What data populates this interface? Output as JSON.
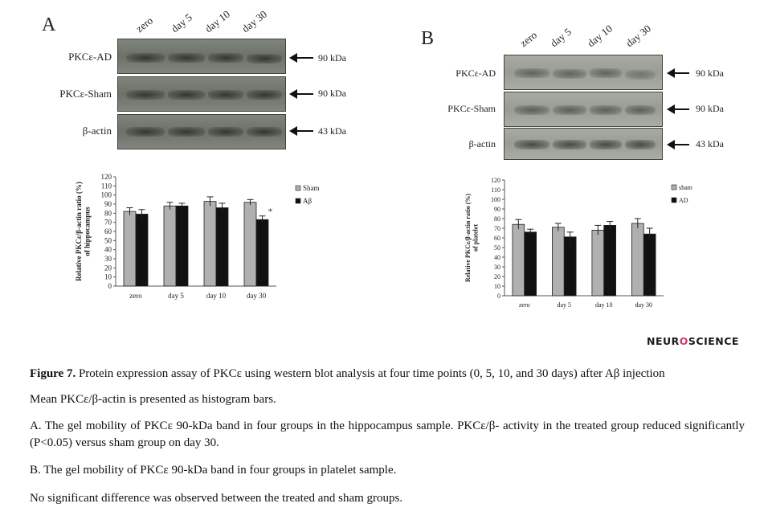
{
  "panel_a": {
    "letter": "A",
    "lanes": [
      "zero",
      "day 5",
      "day 10",
      "day 30"
    ],
    "rows": [
      {
        "label": "PKCε-AD",
        "kda": "90 kDa"
      },
      {
        "label": "PKCε-Sham",
        "kda": "90 kDa"
      },
      {
        "label": "β-actin",
        "kda": "43 kDa"
      }
    ]
  },
  "panel_b": {
    "letter": "B",
    "lanes": [
      "zero",
      "day 5",
      "day 10",
      "day 30"
    ],
    "rows": [
      {
        "label": "PKCε-AD",
        "kda": "90 kDa"
      },
      {
        "label": "PKCε-Sham",
        "kda": "90 kDa"
      },
      {
        "label": "β-actin",
        "kda": "43 kDa"
      }
    ]
  },
  "chart_data": [
    {
      "type": "bar",
      "categories": [
        "zero",
        "day 5",
        "day 10",
        "day 30"
      ],
      "series": [
        {
          "name": "Sham",
          "values": [
            82,
            88,
            93,
            92
          ],
          "errors": [
            4,
            4,
            5,
            3
          ],
          "color": "#b0b0b0"
        },
        {
          "name": "Aβ",
          "values": [
            79,
            88,
            86,
            73
          ],
          "errors": [
            5,
            3,
            5,
            4
          ],
          "color": "#111111"
        }
      ],
      "ylabel": "Relative PKCε/β-actin ratio (%) of hippocampus",
      "ylim": [
        0,
        120
      ],
      "yticks": [
        0,
        10,
        20,
        30,
        40,
        50,
        60,
        70,
        80,
        90,
        100,
        110,
        120
      ],
      "annotations": [
        {
          "category": "day 30",
          "series": "Aβ",
          "text": "*"
        }
      ],
      "legend_position": "top-right"
    },
    {
      "type": "bar",
      "categories": [
        "zero",
        "day 5",
        "day 10",
        "day 30"
      ],
      "series": [
        {
          "name": "sham",
          "values": [
            74,
            71,
            68,
            75
          ],
          "errors": [
            5,
            4,
            5,
            5
          ],
          "color": "#b0b0b0"
        },
        {
          "name": "AD",
          "values": [
            66,
            61,
            73,
            64
          ],
          "errors": [
            3,
            5,
            4,
            6
          ],
          "color": "#111111"
        }
      ],
      "ylabel": "Relative PKCε/β-actin ratio (%) of platelet",
      "ylim": [
        0,
        120
      ],
      "yticks": [
        0,
        10,
        20,
        30,
        40,
        50,
        60,
        70,
        80,
        90,
        100,
        110,
        120
      ],
      "legend_position": "top-right"
    }
  ],
  "logo": {
    "pre": "NEUR",
    "mid": "O",
    "post": "SCIENCE"
  },
  "caption": {
    "title_bold": "Figure 7.",
    "title_rest": "Protein expression assay of PKCε using western blot analysis at four time points (0, 5, 10, and 30 days) after Aβ injection",
    "line2": "Mean PKCε/β-actin is presented as histogram bars.",
    "line3": "A. The gel mobility of PKCε 90-kDa band in four groups in the hippocampus sample. PKCε/β- activity in the treated group reduced significantly (P<0.05) versus sham group on day 30.",
    "line4": "B. The gel mobility of PKCε 90-kDa band in four groups in platelet sample.",
    "line5": "No significant difference was observed between the treated and sham groups."
  }
}
